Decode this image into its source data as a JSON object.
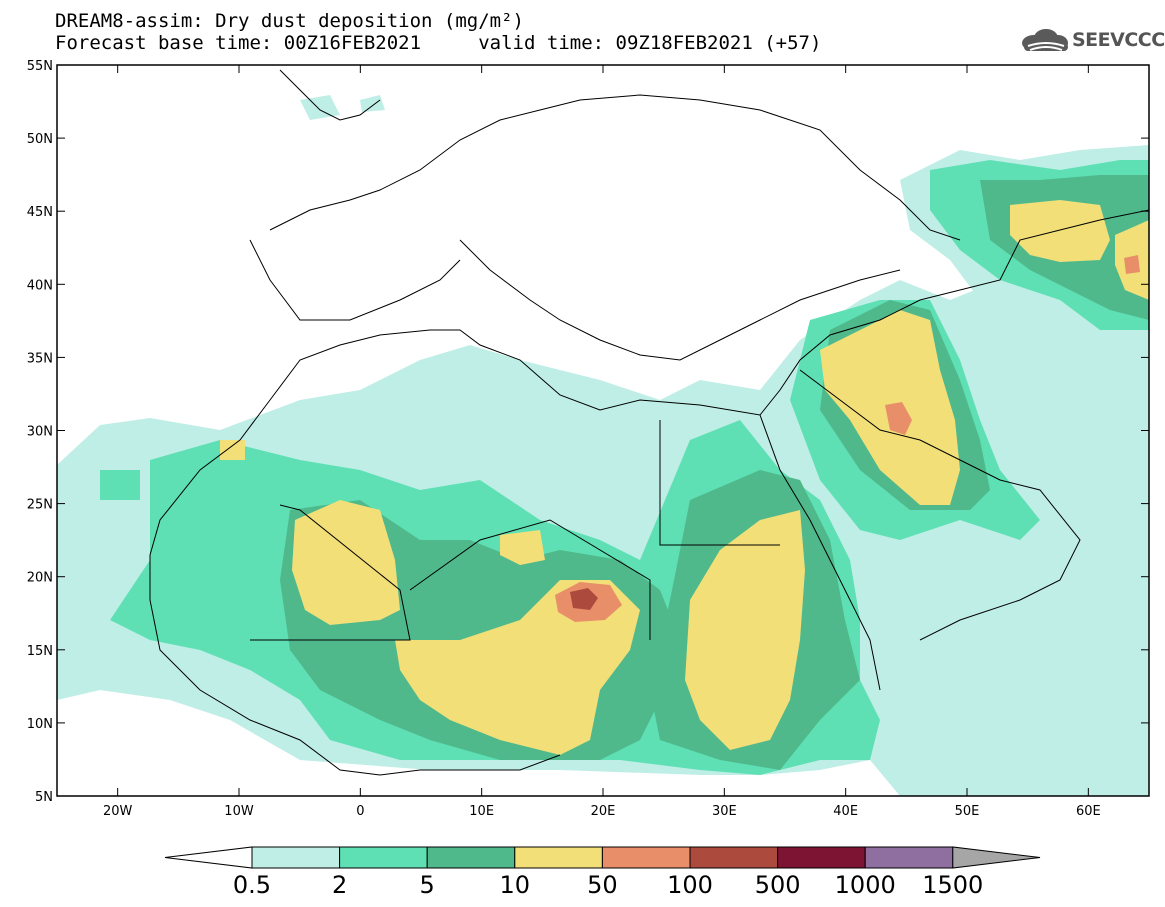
{
  "title": {
    "line1": "DREAM8-assim: Dry dust deposition (mg/m²)",
    "line2": "Forecast base time: 00Z16FEB2021     valid time: 09Z18FEB2021 (+57)"
  },
  "logo": {
    "text": "SEEVCCC",
    "icon": "cloud-icon"
  },
  "map": {
    "lon_range": [
      -25,
      65
    ],
    "lat_range": [
      5,
      55
    ],
    "lat_ticks": [
      "55N",
      "50N",
      "45N",
      "40N",
      "35N",
      "30N",
      "25N",
      "20N",
      "15N",
      "10N",
      "5N"
    ],
    "lon_ticks": [
      "20W",
      "10W",
      "0",
      "10E",
      "20E",
      "30E",
      "40E",
      "50E",
      "60E"
    ]
  },
  "colors": {
    "c1": "#bfeee6",
    "c2": "#5ee0b4",
    "c3": "#4fb98c",
    "c4": "#f2df78",
    "c5": "#e88f6a",
    "c6": "#ad4a3e",
    "c7": "#7d1434",
    "c8": "#8e6fa0",
    "c9": "#a6a6a6"
  },
  "colorbar": {
    "labels": [
      "0.5",
      "2",
      "5",
      "10",
      "50",
      "100",
      "500",
      "1000",
      "1500"
    ]
  }
}
